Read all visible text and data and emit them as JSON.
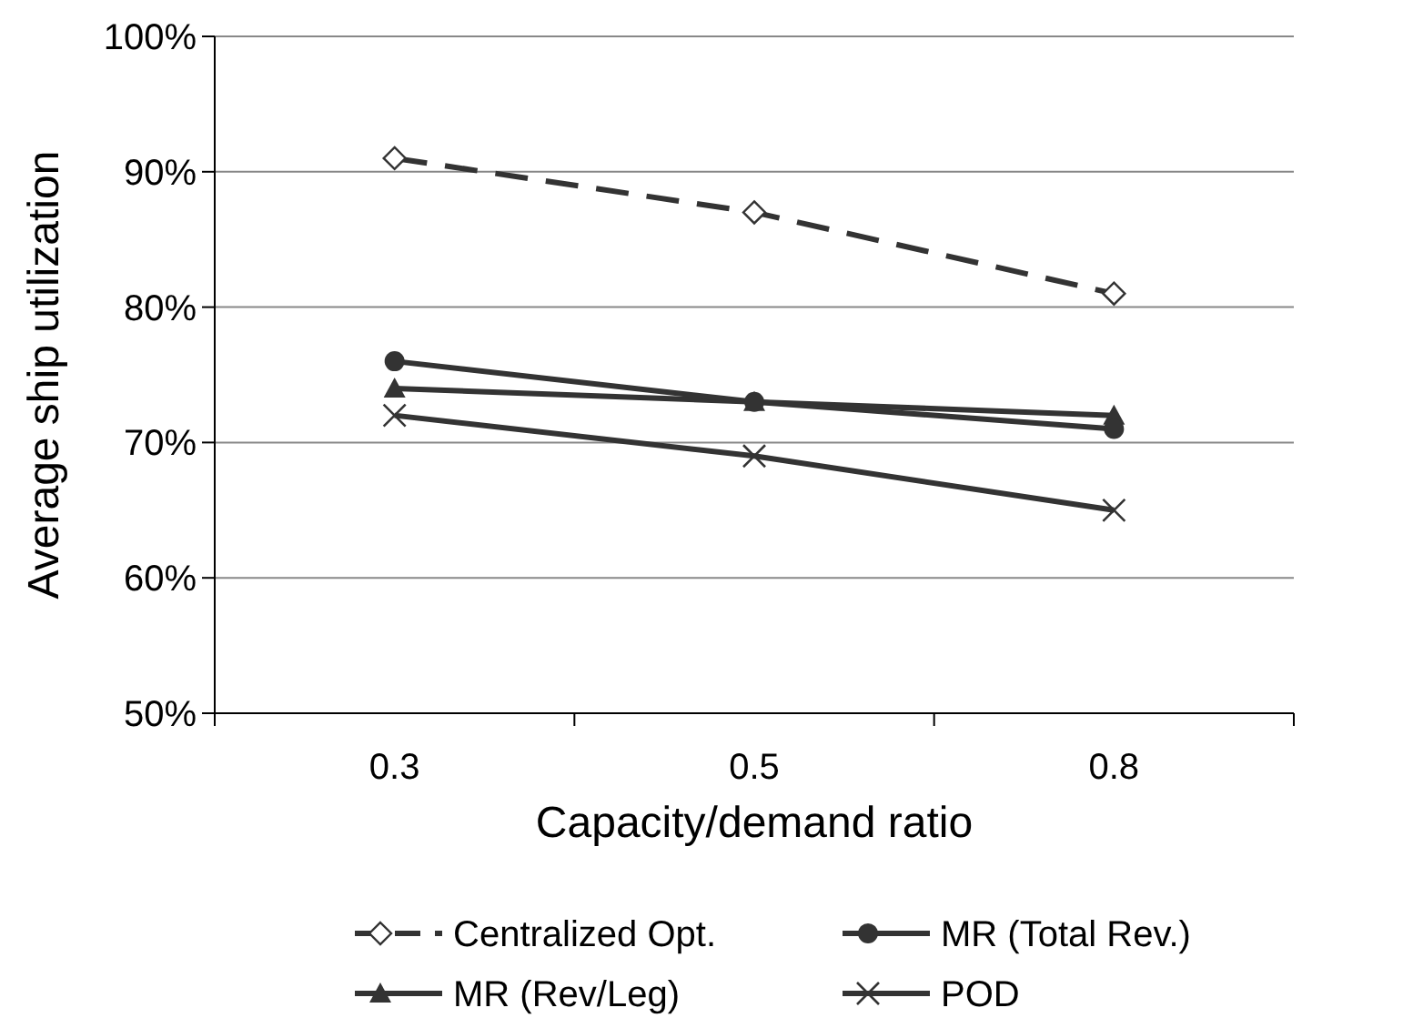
{
  "chart_data": {
    "type": "line",
    "xlabel": "Capacity/demand ratio",
    "ylabel": "Average ship utilization",
    "categories": [
      "0.3",
      "0.5",
      "0.8"
    ],
    "series": [
      {
        "name": "Centralized Opt.",
        "color": "#333333",
        "values": [
          91,
          87,
          81
        ],
        "marker": "diamond",
        "line_style": "dashed"
      },
      {
        "name": "MR (Total Rev.)",
        "color": "#333333",
        "values": [
          76,
          73,
          71
        ],
        "marker": "circle",
        "line_style": "solid"
      },
      {
        "name": "MR (Rev/Leg)",
        "color": "#333333",
        "values": [
          74,
          73,
          72
        ],
        "marker": "triangle",
        "line_style": "solid"
      },
      {
        "name": "POD",
        "color": "#333333",
        "values": [
          72,
          69,
          65
        ],
        "marker": "cross",
        "line_style": "solid"
      }
    ],
    "ylim": [
      50,
      100
    ],
    "yticks": [
      {
        "value": 50,
        "label": "50%"
      },
      {
        "value": 60,
        "label": "60%"
      },
      {
        "value": 70,
        "label": "70%"
      },
      {
        "value": 80,
        "label": "80%"
      },
      {
        "value": 90,
        "label": "90%"
      },
      {
        "value": 100,
        "label": "100%"
      }
    ],
    "grid": "y",
    "legend": "bottom"
  }
}
